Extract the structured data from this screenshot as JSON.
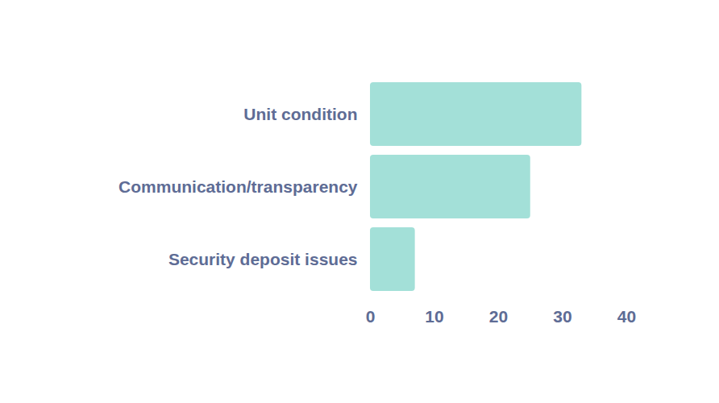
{
  "chart_data": {
    "type": "bar",
    "orientation": "horizontal",
    "categories": [
      "Unit condition",
      "Communication/transparency",
      "Security deposit issues"
    ],
    "values": [
      33,
      25,
      7
    ],
    "color": "#a3e0d8",
    "xlim": [
      0,
      40
    ],
    "xticks": [
      0,
      10,
      20,
      30,
      40
    ],
    "grid": false
  }
}
